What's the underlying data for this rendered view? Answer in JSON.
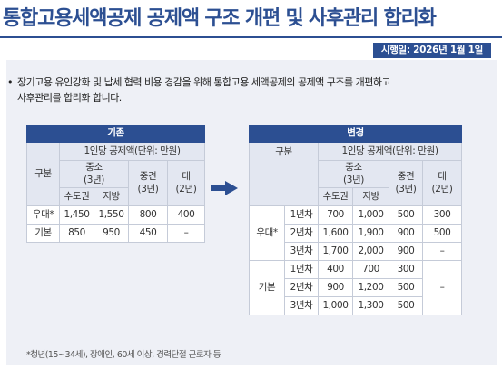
{
  "title": "통합고용세액공제 공제액 구조 개편 및 사후관리 합리화",
  "date_badge": "시행일: 2026년 1월 1일",
  "bullet": {
    "line1": "장기고용 유인강화 및 납세 협력 비용 경감을 위해 통합고용 세액공제의 공제액 구조를 개편하고",
    "line2": "사후관리를 합리화 합니다."
  },
  "before_table": {
    "title": "기존",
    "col_group": "구분",
    "unit_header": "1인당 공제액(단위: 만원)",
    "sme": "중소\n(3년)",
    "sme_l1": "중소",
    "sme_l2": "(3년)",
    "metro": "수도권",
    "local": "지방",
    "mid_l1": "중견",
    "mid_l2": "(3년)",
    "large_l1": "대",
    "large_l2": "(2년)",
    "rows": [
      {
        "label": "우대*",
        "metro": "1,450",
        "local": "1,550",
        "mid": "800",
        "large": "400"
      },
      {
        "label": "기본",
        "metro": "850",
        "local": "950",
        "mid": "450",
        "large": "–"
      }
    ]
  },
  "after_table": {
    "title": "변경",
    "col_group": "구분",
    "unit_header": "1인당 공제액(단위: 만원)",
    "sme_l1": "중소",
    "sme_l2": "(3년)",
    "metro": "수도권",
    "local": "지방",
    "mid_l1": "중견",
    "mid_l2": "(3년)",
    "large_l1": "대",
    "large_l2": "(2년)",
    "groups": [
      {
        "label": "우대*",
        "rows": [
          {
            "year": "1년차",
            "metro": "700",
            "local": "1,000",
            "mid": "500",
            "large": "300"
          },
          {
            "year": "2년차",
            "metro": "1,600",
            "local": "1,900",
            "mid": "900",
            "large": "500"
          },
          {
            "year": "3년차",
            "metro": "1,700",
            "local": "2,000",
            "mid": "900",
            "large": "–"
          }
        ]
      },
      {
        "label": "기본",
        "large_merged": "–",
        "rows": [
          {
            "year": "1년차",
            "metro": "400",
            "local": "700",
            "mid": "300"
          },
          {
            "year": "2년차",
            "metro": "900",
            "local": "1,200",
            "mid": "500"
          },
          {
            "year": "3년차",
            "metro": "1,000",
            "local": "1,300",
            "mid": "500"
          }
        ]
      }
    ]
  },
  "footnote": "*청년(15~34세), 장애인, 60세 이상, 경력단절 근로자 등",
  "colors": {
    "brand": "#2c4f92",
    "panel": "#eef0f6",
    "subheader": "#e3e7f1"
  },
  "icons": {
    "arrow": "right-arrow-icon"
  }
}
